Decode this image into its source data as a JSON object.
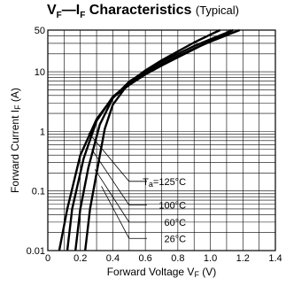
{
  "chart_data": {
    "type": "line",
    "title_symbols": {
      "vf_main": "V",
      "vf_sub": "F",
      "dash": "—",
      "if_main": "I",
      "if_sub": "F"
    },
    "title_rest": "Characteristics",
    "subtitle": "(Typical)",
    "xlabel": {
      "text": "Forward Voltage",
      "sym_main": "V",
      "sym_sub": "F",
      "unit": "(V)"
    },
    "ylabel": {
      "text": "Forward Current",
      "sym_main": "I",
      "sym_sub": "F",
      "unit": "(A)"
    },
    "x_scale": "linear",
    "y_scale": "log",
    "xlim": [
      0,
      1.4
    ],
    "ylim": [
      0.01,
      50
    ],
    "x_ticks": [
      0,
      0.2,
      0.4,
      0.6,
      0.8,
      1.0,
      1.2,
      1.4
    ],
    "x_tick_labels": [
      "0",
      "0.2",
      "0.4",
      "0.6",
      "0.8",
      "1.0",
      "1.2",
      "1.4"
    ],
    "y_ticks": [
      0.01,
      0.1,
      1,
      10,
      50
    ],
    "y_tick_labels": [
      "0.01",
      "0.1",
      "1",
      "10",
      "50"
    ],
    "grid": true,
    "legend_items": [
      {
        "prefix": "T",
        "prefix_sub": "a",
        "label": "=125°C"
      },
      {
        "label": "100°C"
      },
      {
        "label": "60°C"
      },
      {
        "label": "26°C"
      }
    ],
    "series": [
      {
        "points": [
          [
            0.07,
            0.01
          ],
          [
            0.12,
            0.05
          ],
          [
            0.2,
            0.4
          ],
          [
            0.3,
            1.6
          ],
          [
            0.4,
            3.7
          ],
          [
            0.5,
            6.0
          ],
          [
            0.6,
            9.0
          ],
          [
            0.7,
            12.7
          ],
          [
            0.8,
            17.5
          ],
          [
            0.9,
            24
          ],
          [
            1.0,
            33
          ],
          [
            1.1,
            44
          ],
          [
            1.14,
            50
          ]
        ]
      },
      {
        "points": [
          [
            0.12,
            0.01
          ],
          [
            0.15,
            0.05
          ],
          [
            0.22,
            0.35
          ],
          [
            0.3,
            1.5
          ],
          [
            0.4,
            3.8
          ],
          [
            0.5,
            6.4
          ],
          [
            0.6,
            9.5
          ],
          [
            0.7,
            13.3
          ],
          [
            0.8,
            18.2
          ],
          [
            0.9,
            24.5
          ],
          [
            1.0,
            32
          ],
          [
            1.1,
            41
          ],
          [
            1.18,
            50
          ]
        ]
      },
      {
        "points": [
          [
            0.17,
            0.01
          ],
          [
            0.2,
            0.05
          ],
          [
            0.25,
            0.25
          ],
          [
            0.32,
            1.3
          ],
          [
            0.4,
            3.6
          ],
          [
            0.5,
            6.8
          ],
          [
            0.6,
            10.2
          ],
          [
            0.7,
            14.6
          ],
          [
            0.8,
            20
          ],
          [
            0.9,
            27
          ],
          [
            1.0,
            35
          ],
          [
            1.1,
            45
          ],
          [
            1.13,
            50
          ]
        ]
      },
      {
        "points": [
          [
            0.23,
            0.01
          ],
          [
            0.26,
            0.05
          ],
          [
            0.3,
            0.2
          ],
          [
            0.35,
            1.1
          ],
          [
            0.4,
            2.8
          ],
          [
            0.5,
            6.6
          ],
          [
            0.6,
            10.5
          ],
          [
            0.7,
            15.5
          ],
          [
            0.8,
            22
          ],
          [
            0.9,
            31
          ],
          [
            1.0,
            42
          ],
          [
            1.06,
            50
          ]
        ]
      }
    ]
  }
}
